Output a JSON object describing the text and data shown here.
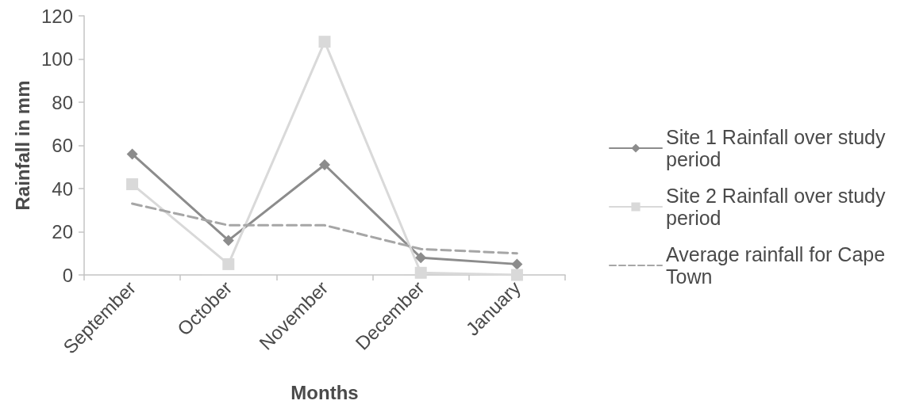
{
  "chart_data": {
    "type": "line",
    "xlabel": "Months",
    "ylabel": "Rainfall in mm",
    "categories": [
      "September",
      "October",
      "November",
      "December",
      "January"
    ],
    "series": [
      {
        "name": "Site 1 Rainfall over study period",
        "color": "#8c8c8c",
        "marker": "diamond",
        "line_style": "solid",
        "values": [
          56,
          16,
          51,
          8,
          5
        ]
      },
      {
        "name": "Site 2 Rainfall over study period",
        "color": "#d9d9d9",
        "marker": "square",
        "line_style": "solid",
        "values": [
          42,
          5,
          108,
          1,
          0
        ]
      },
      {
        "name": "Average rainfall for Cape Town",
        "color": "#a6a6a6",
        "marker": "none",
        "line_style": "dashed",
        "values": [
          33,
          23,
          23,
          12,
          10
        ]
      }
    ],
    "ylim": [
      0,
      120
    ],
    "yticks": [
      0,
      20,
      40,
      60,
      80,
      100,
      120
    ],
    "grid": false,
    "legend": "right"
  }
}
